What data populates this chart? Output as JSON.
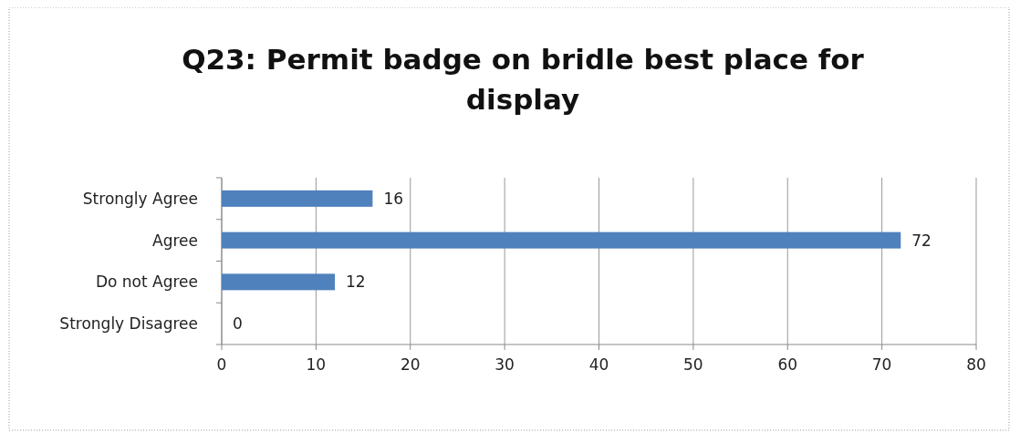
{
  "chart_data": {
    "type": "bar",
    "orientation": "horizontal",
    "title": "Q23: Permit badge on bridle best place for display",
    "categories": [
      "Strongly Agree",
      "Agree",
      "Do not Agree",
      "Strongly Disagree"
    ],
    "values": [
      16,
      72,
      12,
      0
    ],
    "color": "#4f81bd",
    "xlim": [
      0,
      80
    ],
    "xticks": [
      0,
      10,
      20,
      30,
      40,
      50,
      60,
      70,
      80
    ],
    "grid": "x",
    "data_labels": true
  }
}
